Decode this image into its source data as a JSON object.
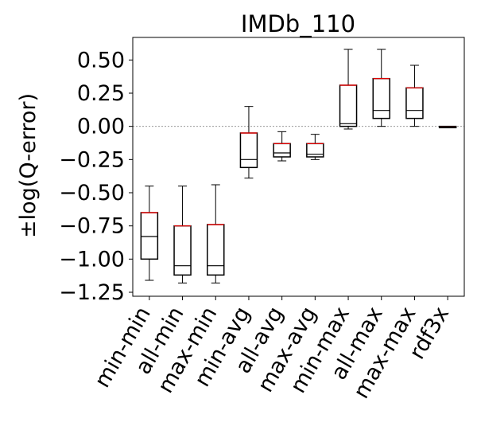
{
  "chart_data": {
    "type": "box",
    "title": "IMDb_110",
    "xlabel": "",
    "ylabel": "±log(Q-error)",
    "ylim": [
      -1.28,
      0.67
    ],
    "yticks": [
      0.5,
      0.25,
      0.0,
      -0.25,
      -0.5,
      -0.75,
      -1.0,
      -1.25
    ],
    "ytick_labels": [
      "0.50",
      "0.25",
      "0.00",
      "−0.25",
      "−0.50",
      "−0.75",
      "−1.00",
      "−1.25"
    ],
    "reference_line": 0.0,
    "grid": false,
    "categories": [
      "min-min",
      "all-min",
      "max-min",
      "min-avg",
      "all-avg",
      "max-avg",
      "min-max",
      "all-max",
      "max-max",
      "rdf3x"
    ],
    "boxes": [
      {
        "whisker_low": -1.16,
        "q1": -1.0,
        "median": -0.83,
        "q3": -0.65,
        "whisker_high": -0.45
      },
      {
        "whisker_low": -1.18,
        "q1": -1.12,
        "median": -1.05,
        "q3": -0.75,
        "whisker_high": -0.45
      },
      {
        "whisker_low": -1.18,
        "q1": -1.12,
        "median": -1.05,
        "q3": -0.74,
        "whisker_high": -0.44
      },
      {
        "whisker_low": -0.39,
        "q1": -0.31,
        "median": -0.25,
        "q3": -0.05,
        "whisker_high": 0.15
      },
      {
        "whisker_low": -0.26,
        "q1": -0.23,
        "median": -0.2,
        "q3": -0.13,
        "whisker_high": -0.04
      },
      {
        "whisker_low": -0.25,
        "q1": -0.23,
        "median": -0.21,
        "q3": -0.13,
        "whisker_high": -0.06
      },
      {
        "whisker_low": -0.02,
        "q1": 0.0,
        "median": 0.02,
        "q3": 0.31,
        "whisker_high": 0.58
      },
      {
        "whisker_low": 0.0,
        "q1": 0.06,
        "median": 0.12,
        "q3": 0.36,
        "whisker_high": 0.58
      },
      {
        "whisker_low": 0.0,
        "q1": 0.06,
        "median": 0.12,
        "q3": 0.29,
        "whisker_high": 0.46
      },
      {
        "whisker_low": -0.01,
        "q1": -0.01,
        "median": 0.0,
        "q3": 0.0,
        "whisker_high": 0.0
      }
    ],
    "colors": {
      "box": "#000000",
      "median": "#000000",
      "edge_highlight": "#ff0000",
      "reference_line": "#888888"
    }
  }
}
